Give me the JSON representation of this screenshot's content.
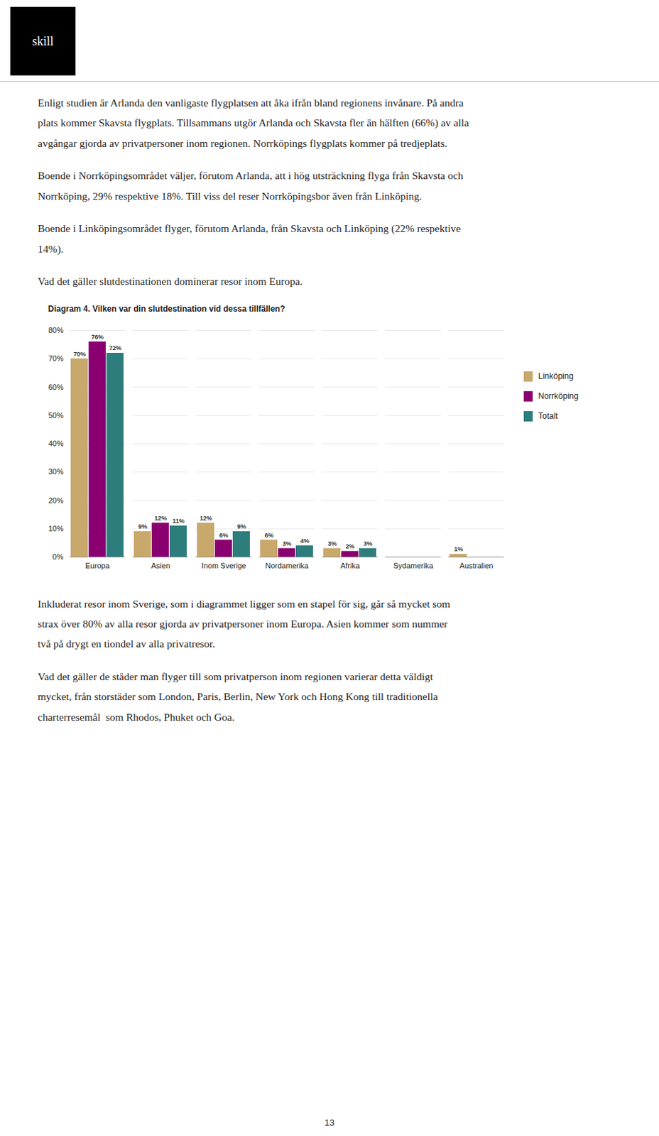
{
  "chart_data": {
    "type": "bar",
    "title": "Diagram 4. Vilken var din slutdestination vid dessa tillfällen?",
    "categories": [
      "Europa",
      "Asien",
      "Inom Sverige",
      "Nordamerika",
      "Afrika",
      "Sydamerika",
      "Australien"
    ],
    "series": [
      {
        "name": "Linköping",
        "color": "#C8A86B",
        "values": [
          70,
          9,
          12,
          6,
          3,
          0,
          1
        ],
        "value_labels": [
          "70%",
          "9%",
          "12%",
          "6%",
          "3%",
          null,
          "1%"
        ]
      },
      {
        "name": "Norrköping",
        "color": "#8B0070",
        "values": [
          76,
          12,
          6,
          3,
          2,
          0,
          0
        ],
        "value_labels": [
          "76%",
          "12%",
          "6%",
          "3%",
          "2%",
          null,
          null
        ]
      },
      {
        "name": "Totalt",
        "color": "#2E7D7D",
        "values": [
          72,
          11,
          9,
          4,
          3,
          0,
          0
        ],
        "value_labels": [
          "72%",
          "11%",
          "9%",
          "4%",
          "3%",
          null,
          null
        ]
      }
    ],
    "ylim": [
      0,
      80
    ],
    "yticks": [
      {
        "value": 0,
        "label": "0%"
      },
      {
        "value": 10,
        "label": "10%"
      },
      {
        "value": 20,
        "label": "20%"
      },
      {
        "value": 30,
        "label": "30%"
      },
      {
        "value": 40,
        "label": "40%"
      },
      {
        "value": 50,
        "label": "50%"
      },
      {
        "value": 60,
        "label": "60%"
      },
      {
        "value": 70,
        "label": "70%"
      },
      {
        "value": 80,
        "label": "80%"
      }
    ],
    "grid": true,
    "legend": "right",
    "data_labels": true,
    "annotations": [
      "skill",
      "Enligt studien är Arlanda den vanligaste flygplatsen att åka ifrån bland regionens invånare. På andra\nplats kommer Skavsta flygplats. Tillsammans utgör Arlanda och Skavsta fler än hälften (66%) av alla\navgångar gjorda av privatpersoner inom regionen. Norrköpings flygplats kommer på tredjeplats.",
      "Boende i Norrköpingsområdet väljer, förutom Arlanda, att i hög utsträckning flyga från Skavsta och\nNorrköping, 29% respektive 18%. Till viss del reser Norrköpingsbor även från Linköping.",
      "Boende i Linköpingsområdet flyger, förutom Arlanda, från Skavsta och Linköping (22% respektive\n14%).",
      "Vad det gäller slutdestinationen dominerar resor inom Europa.",
      "Inkluderat resor inom Sverige, som i diagrammet ligger som en stapel för sig, går så mycket som\nstrax över 80% av alla resor gjorda av privatpersoner inom Europa. Asien kommer som nummer\ntvå på drygt en tiondel av alla privatresor.",
      "Vad det gäller de städer man flyger till som privatperson inom regionen varierar detta väldigt\nmycket, från storstäder som London, Paris, Berlin, New York och Hong Kong till traditionella\ncharterresemål  som Rhodos, Phuket och Goa.",
      "13"
    ]
  }
}
